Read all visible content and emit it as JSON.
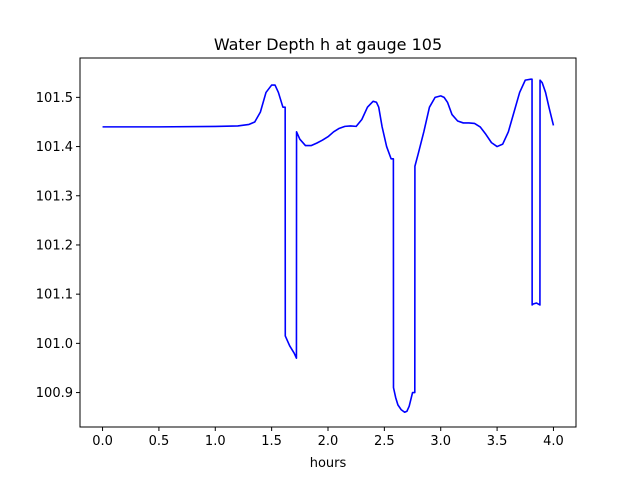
{
  "chart_data": {
    "type": "line",
    "title": "Water Depth h at gauge 105",
    "xlabel": "hours",
    "ylabel": "",
    "xlim": [
      -0.2,
      4.2
    ],
    "ylim": [
      100.83,
      101.58
    ],
    "xticks": [
      0.0,
      0.5,
      1.0,
      1.5,
      2.0,
      2.5,
      3.0,
      3.5,
      4.0
    ],
    "xtick_labels": [
      "0.0",
      "0.5",
      "1.0",
      "1.5",
      "2.0",
      "2.5",
      "3.0",
      "3.5",
      "4.0"
    ],
    "yticks": [
      100.9,
      101.0,
      101.1,
      101.2,
      101.3,
      101.4,
      101.5
    ],
    "ytick_labels": [
      "100.9",
      "101.0",
      "101.1",
      "101.2",
      "101.3",
      "101.4",
      "101.5"
    ],
    "grid": false,
    "legend": "none",
    "series": [
      {
        "color": "#0000ff",
        "x": [
          0.0,
          0.5,
          1.0,
          1.2,
          1.3,
          1.35,
          1.4,
          1.45,
          1.5,
          1.53,
          1.56,
          1.6,
          1.62,
          1.621,
          1.66,
          1.7,
          1.72,
          1.721,
          1.75,
          1.8,
          1.85,
          1.9,
          1.95,
          2.0,
          2.05,
          2.1,
          2.15,
          2.2,
          2.25,
          2.3,
          2.35,
          2.4,
          2.43,
          2.45,
          2.48,
          2.52,
          2.56,
          2.58,
          2.581,
          2.6,
          2.62,
          2.65,
          2.68,
          2.7,
          2.72,
          2.75,
          2.77,
          2.771,
          2.8,
          2.85,
          2.9,
          2.95,
          3.0,
          3.03,
          3.06,
          3.1,
          3.15,
          3.2,
          3.25,
          3.3,
          3.35,
          3.4,
          3.45,
          3.5,
          3.55,
          3.6,
          3.65,
          3.7,
          3.75,
          3.8,
          3.81,
          3.811,
          3.82,
          3.85,
          3.88,
          3.881,
          3.9,
          3.93,
          3.96,
          4.0
        ],
        "values": [
          101.44,
          101.44,
          101.441,
          101.442,
          101.445,
          101.45,
          101.47,
          101.51,
          101.525,
          101.525,
          101.51,
          101.48,
          101.48,
          101.015,
          100.995,
          100.98,
          100.97,
          101.43,
          101.415,
          101.402,
          101.402,
          101.407,
          101.413,
          101.42,
          101.43,
          101.437,
          101.441,
          101.442,
          101.441,
          101.455,
          101.48,
          101.492,
          101.49,
          101.48,
          101.44,
          101.4,
          101.375,
          101.375,
          100.91,
          100.89,
          100.875,
          100.865,
          100.86,
          100.862,
          100.872,
          100.9,
          100.9,
          101.36,
          101.385,
          101.43,
          101.48,
          101.5,
          101.503,
          101.5,
          101.49,
          101.465,
          101.452,
          101.448,
          101.448,
          101.447,
          101.44,
          101.425,
          101.408,
          101.4,
          101.405,
          101.43,
          101.47,
          101.51,
          101.535,
          101.537,
          101.537,
          101.078,
          101.08,
          101.082,
          101.078,
          101.535,
          101.53,
          101.51,
          101.48,
          101.443
        ]
      }
    ]
  }
}
